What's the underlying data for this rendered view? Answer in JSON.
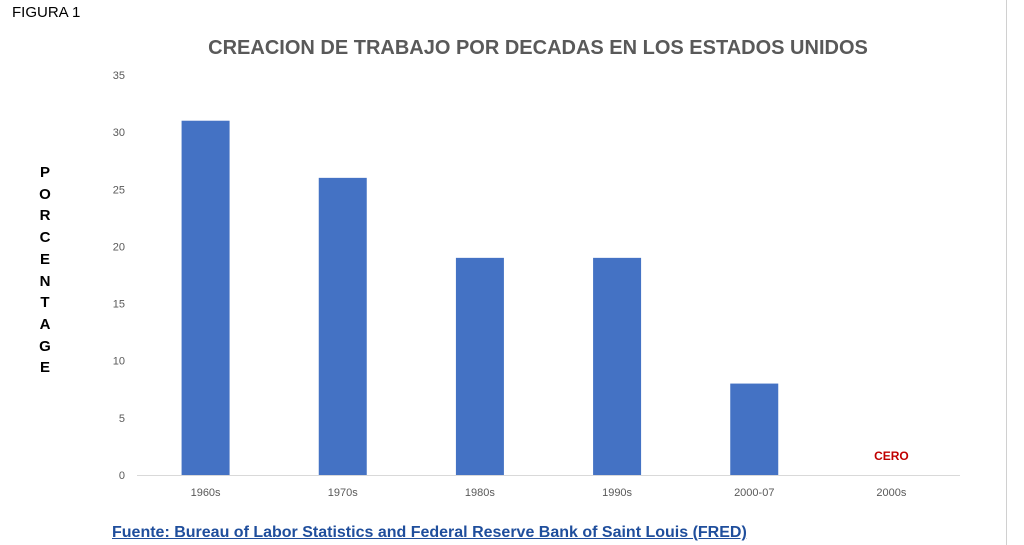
{
  "figure_label": "FIGURA 1",
  "source_text": "Fuente: Bureau of Labor Statistics and Federal Reserve Bank of Saint Louis (FRED)",
  "colors": {
    "bar": "#4472C4",
    "title": "#595959",
    "axis_text": "#595959",
    "gridline": "#d9d9d9",
    "annotation": "#C00000",
    "source_link": "#1F4E9C"
  },
  "chart_data": {
    "type": "bar",
    "title": "CREACION DE TRABAJO POR DECADAS EN LOS ESTADOS UNIDOS",
    "xlabel": "",
    "ylabel": "PORCENTAGE",
    "categories": [
      "1960s",
      "1970s",
      "1980s",
      "1990s",
      "2000-07",
      "2000s"
    ],
    "values": [
      31,
      26,
      19,
      19,
      8,
      0
    ],
    "ylim": [
      0,
      35
    ],
    "yticks": [
      0,
      5,
      10,
      15,
      20,
      25,
      30,
      35
    ],
    "grid": false,
    "annotations": [
      {
        "category": "2000s",
        "text": "CERO"
      }
    ]
  }
}
